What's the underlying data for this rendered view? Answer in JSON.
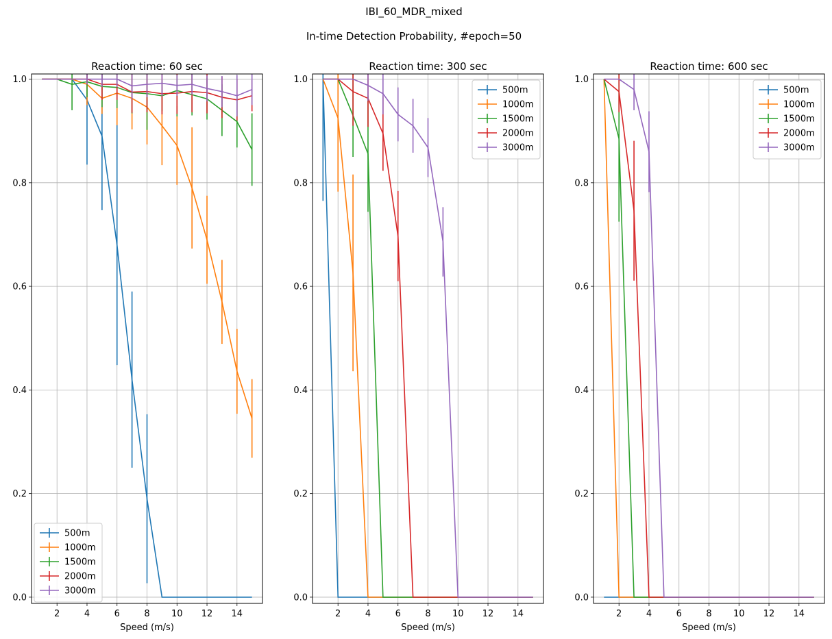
{
  "figure": {
    "suptitle": "IBI_60_MDR_mixed",
    "subtitle": "In-time Detection Probability, #epoch=50"
  },
  "chart_data": [
    {
      "type": "line",
      "title": "Reaction time: 60 sec",
      "xlabel": "Speed (m/s)",
      "ylabel": "",
      "xlim": [
        0.3,
        15.7
      ],
      "ylim": [
        -0.012,
        1.01
      ],
      "xticks": [
        "2",
        "4",
        "6",
        "8",
        "10",
        "12",
        "14"
      ],
      "yticks": [
        "0.0",
        "0.2",
        "0.4",
        "0.6",
        "0.8",
        "1.0"
      ],
      "grid": true,
      "legend_position": "lower-left",
      "x": [
        1,
        2,
        3,
        4,
        5,
        6,
        7,
        8,
        9,
        10,
        11,
        12,
        13,
        14,
        15
      ],
      "series": [
        {
          "name": "500m",
          "color": "#1f77b4",
          "values": [
            1.0,
            1.0,
            1.0,
            0.96,
            0.89,
            0.68,
            0.42,
            0.19,
            0.0,
            0.0,
            0.0,
            0.0,
            0.0,
            0.0,
            0.0
          ],
          "errors": [
            0,
            0,
            0,
            0.125,
            0.143,
            0.232,
            0.17,
            0.163,
            0,
            0,
            0,
            0,
            0,
            0,
            0
          ]
        },
        {
          "name": "1000m",
          "color": "#ff7f0e",
          "values": [
            1.0,
            1.0,
            1.0,
            0.99,
            0.963,
            0.973,
            0.963,
            0.946,
            0.91,
            0.872,
            0.79,
            0.69,
            0.57,
            0.436,
            0.345
          ],
          "errors": [
            0,
            0,
            0,
            0.04,
            0.03,
            0.062,
            0.06,
            0.072,
            0.076,
            0.076,
            0.117,
            0.085,
            0.081,
            0.082,
            0.076
          ]
        },
        {
          "name": "1500m",
          "color": "#2ca02c",
          "values": [
            1.0,
            1.0,
            0.99,
            0.995,
            0.986,
            0.984,
            0.974,
            0.972,
            0.968,
            0.978,
            0.97,
            0.962,
            0.94,
            0.918,
            0.864
          ],
          "errors": [
            0,
            0,
            0.05,
            0.03,
            0.04,
            0.04,
            0.04,
            0.07,
            0.03,
            0.05,
            0.04,
            0.04,
            0.05,
            0.05,
            0.07
          ]
        },
        {
          "name": "2000m",
          "color": "#d62728",
          "values": [
            1.0,
            1.0,
            1.0,
            1.0,
            0.99,
            0.99,
            0.975,
            0.976,
            0.972,
            0.973,
            0.976,
            0.974,
            0.965,
            0.96,
            0.968
          ],
          "errors": [
            0,
            0,
            0,
            0.01,
            0.03,
            0.03,
            0.04,
            0.04,
            0.04,
            0.04,
            0.04,
            0.04,
            0.04,
            0.04,
            0.03
          ]
        },
        {
          "name": "3000m",
          "color": "#9467bd",
          "values": [
            1.0,
            1.0,
            1.0,
            1.0,
            1.0,
            1.0,
            0.987,
            0.99,
            0.992,
            0.988,
            0.99,
            0.982,
            0.976,
            0.968,
            0.98
          ],
          "errors": [
            0,
            0,
            0,
            0.01,
            0.015,
            0.015,
            0.025,
            0.025,
            0.025,
            0.02,
            0.02,
            0.025,
            0.03,
            0.04,
            0.03
          ]
        }
      ]
    },
    {
      "type": "line",
      "title": "Reaction time: 300 sec",
      "xlabel": "Speed (m/s)",
      "ylabel": "",
      "xlim": [
        0.3,
        15.7
      ],
      "ylim": [
        -0.012,
        1.01
      ],
      "xticks": [
        "2",
        "4",
        "6",
        "8",
        "10",
        "12",
        "14"
      ],
      "yticks": [
        "0.0",
        "0.2",
        "0.4",
        "0.6",
        "0.8",
        "1.0"
      ],
      "grid": true,
      "legend_position": "upper-right",
      "x": [
        1,
        2,
        3,
        4,
        5,
        6,
        7,
        8,
        9,
        10,
        11,
        12,
        13,
        14,
        15
      ],
      "series": [
        {
          "name": "500m",
          "color": "#1f77b4",
          "values": [
            1.0,
            0.0,
            0.0,
            0.0,
            0.0,
            0.0,
            0.0,
            0.0,
            0.0,
            0.0,
            0.0,
            0.0,
            0.0,
            0.0,
            0.0
          ],
          "errors": [
            0.235,
            0,
            0,
            0,
            0,
            0,
            0,
            0,
            0,
            0,
            0,
            0,
            0,
            0,
            0
          ]
        },
        {
          "name": "1000m",
          "color": "#ff7f0e",
          "values": [
            1.0,
            0.925,
            0.626,
            0.0,
            0.0,
            0.0,
            0.0,
            0.0,
            0.0,
            0.0,
            0.0,
            0.0,
            0.0,
            0.0,
            0.0
          ],
          "errors": [
            0,
            0.142,
            0.19,
            0,
            0,
            0,
            0,
            0,
            0,
            0,
            0,
            0,
            0,
            0,
            0
          ]
        },
        {
          "name": "1500m",
          "color": "#2ca02c",
          "values": [
            1.0,
            1.0,
            0.93,
            0.856,
            0.0,
            0.0,
            0.0,
            0.0,
            0.0,
            0.0,
            0.0,
            0.0,
            0.0,
            0.0,
            0.0
          ],
          "errors": [
            0,
            0,
            0.08,
            0.112,
            0,
            0,
            0,
            0,
            0,
            0,
            0,
            0,
            0,
            0,
            0
          ]
        },
        {
          "name": "2000m",
          "color": "#d62728",
          "values": [
            1.0,
            1.0,
            0.976,
            0.963,
            0.895,
            0.697,
            0.0,
            0.0,
            0.0,
            0.0,
            0.0,
            0.0,
            0.0,
            0.0,
            0.0
          ],
          "errors": [
            0,
            0,
            0.066,
            0.055,
            0.072,
            0.087,
            0,
            0,
            0,
            0,
            0,
            0,
            0,
            0,
            0
          ]
        },
        {
          "name": "3000m",
          "color": "#9467bd",
          "values": [
            1.0,
            1.0,
            1.0,
            0.988,
            0.972,
            0.932,
            0.91,
            0.868,
            0.686,
            0.0,
            0.0,
            0.0,
            0.0,
            0.0,
            0.0
          ],
          "errors": [
            0,
            0,
            0,
            0.03,
            0.04,
            0.052,
            0.052,
            0.057,
            0.067,
            0,
            0,
            0,
            0,
            0,
            0
          ]
        }
      ]
    },
    {
      "type": "line",
      "title": "Reaction time: 600 sec",
      "xlabel": "Speed (m/s)",
      "ylabel": "",
      "xlim": [
        0.3,
        15.7
      ],
      "ylim": [
        -0.012,
        1.01
      ],
      "xticks": [
        "2",
        "4",
        "6",
        "8",
        "10",
        "12",
        "14"
      ],
      "yticks": [
        "0.0",
        "0.2",
        "0.4",
        "0.6",
        "0.8",
        "1.0"
      ],
      "grid": true,
      "legend_position": "upper-right",
      "x": [
        1,
        2,
        3,
        4,
        5,
        6,
        7,
        8,
        9,
        10,
        11,
        12,
        13,
        14,
        15
      ],
      "series": [
        {
          "name": "500m",
          "color": "#1f77b4",
          "values": [
            0.0,
            0.0,
            0.0,
            0.0,
            0.0,
            0.0,
            0.0,
            0.0,
            0.0,
            0.0,
            0.0,
            0.0,
            0.0,
            0.0,
            0.0
          ],
          "errors": [
            0,
            0,
            0,
            0,
            0,
            0,
            0,
            0,
            0,
            0,
            0,
            0,
            0,
            0,
            0
          ]
        },
        {
          "name": "1000m",
          "color": "#ff7f0e",
          "values": [
            1.0,
            0.0,
            0.0,
            0.0,
            0.0,
            0.0,
            0.0,
            0.0,
            0.0,
            0.0,
            0.0,
            0.0,
            0.0,
            0.0,
            0.0
          ],
          "errors": [
            0,
            0,
            0,
            0,
            0,
            0,
            0,
            0,
            0,
            0,
            0,
            0,
            0,
            0,
            0
          ]
        },
        {
          "name": "1500m",
          "color": "#2ca02c",
          "values": [
            1.0,
            0.885,
            0.0,
            0.0,
            0.0,
            0.0,
            0.0,
            0.0,
            0.0,
            0.0,
            0.0,
            0.0,
            0.0,
            0.0,
            0.0
          ],
          "errors": [
            0,
            0.16,
            0,
            0,
            0,
            0,
            0,
            0,
            0,
            0,
            0,
            0,
            0,
            0,
            0
          ]
        },
        {
          "name": "2000m",
          "color": "#d62728",
          "values": [
            1.0,
            0.976,
            0.746,
            0.0,
            0.0,
            0.0,
            0.0,
            0.0,
            0.0,
            0.0,
            0.0,
            0.0,
            0.0,
            0.0,
            0.0
          ],
          "errors": [
            0,
            0.04,
            0.135,
            0,
            0,
            0,
            0,
            0,
            0,
            0,
            0,
            0,
            0,
            0,
            0
          ]
        },
        {
          "name": "3000m",
          "color": "#9467bd",
          "values": [
            1.0,
            1.0,
            0.98,
            0.86,
            0.0,
            0.0,
            0.0,
            0.0,
            0.0,
            0.0,
            0.0,
            0.0,
            0.0,
            0.0,
            0.0
          ],
          "errors": [
            0,
            0,
            0.04,
            0.078,
            0,
            0,
            0,
            0,
            0,
            0,
            0,
            0,
            0,
            0,
            0
          ]
        }
      ]
    }
  ]
}
